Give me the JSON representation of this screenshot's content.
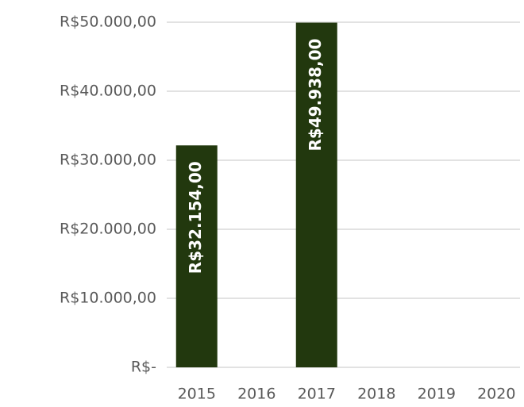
{
  "chart_data": {
    "type": "bar",
    "categories": [
      "2015",
      "2016",
      "2017",
      "2018",
      "2019",
      "2020"
    ],
    "values": [
      32154,
      null,
      49938,
      null,
      null,
      null
    ],
    "value_labels": [
      "R$32.154,00",
      null,
      "R$49.938,00",
      null,
      null,
      null
    ],
    "color": "#22380e",
    "ylim": [
      0,
      50000
    ],
    "yticks": [
      {
        "value": 0,
        "label": "R$-"
      },
      {
        "value": 10000,
        "label": "R$10.000,00"
      },
      {
        "value": 20000,
        "label": "R$20.000,00"
      },
      {
        "value": 30000,
        "label": "R$30.000,00"
      },
      {
        "value": 40000,
        "label": "R$40.000,00"
      },
      {
        "value": 50000,
        "label": "R$50.000,00"
      }
    ],
    "grid": true
  }
}
